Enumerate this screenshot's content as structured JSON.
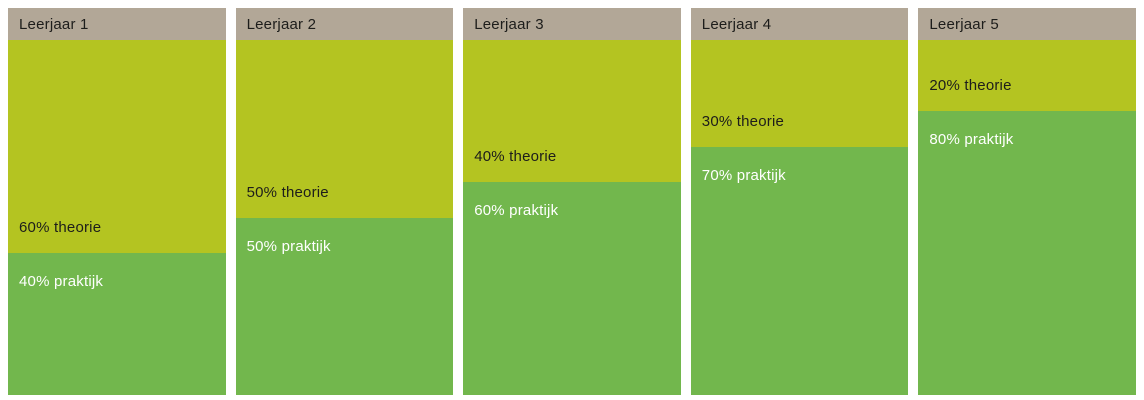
{
  "chart": {
    "colors": {
      "header": "#b2a797",
      "theorie": "#b4c421",
      "praktijk": "#72b74d",
      "theorie_text": "#1d1d1b",
      "praktijk_text": "#ffffff",
      "header_text": "#1d1d1b",
      "background": "#ffffff"
    }
  },
  "chart_data": {
    "type": "bar",
    "subtype": "100-percent-stacked-column",
    "title": "",
    "categories": [
      "Leerjaar 1",
      "Leerjaar 2",
      "Leerjaar 3",
      "Leerjaar 4",
      "Leerjaar 5"
    ],
    "series": [
      {
        "name": "theorie",
        "values": [
          60,
          50,
          40,
          30,
          20
        ],
        "color": "#b4c421"
      },
      {
        "name": "praktijk",
        "values": [
          40,
          50,
          60,
          70,
          80
        ],
        "color": "#72b74d"
      }
    ],
    "value_unit": "%",
    "ylim": [
      0,
      100
    ],
    "grid": false,
    "legend_position": "none",
    "data_labels": [
      [
        "60% theorie",
        "40% praktijk"
      ],
      [
        "50% theorie",
        "50% praktijk"
      ],
      [
        "40% theorie",
        "60% praktijk"
      ],
      [
        "30% theorie",
        "70% praktijk"
      ],
      [
        "20% theorie",
        "80% praktijk"
      ]
    ]
  },
  "columns": [
    {
      "title": "Leerjaar 1",
      "theorie_pct": 60,
      "praktijk_pct": 40,
      "theorie_label": "60% theorie",
      "praktijk_label": "40% praktijk"
    },
    {
      "title": "Leerjaar 2",
      "theorie_pct": 50,
      "praktijk_pct": 50,
      "theorie_label": "50% theorie",
      "praktijk_label": "50% praktijk"
    },
    {
      "title": "Leerjaar 3",
      "theorie_pct": 40,
      "praktijk_pct": 60,
      "theorie_label": "40% theorie",
      "praktijk_label": "60% praktijk"
    },
    {
      "title": "Leerjaar 4",
      "theorie_pct": 30,
      "praktijk_pct": 70,
      "theorie_label": "30% theorie",
      "praktijk_label": "70% praktijk"
    },
    {
      "title": "Leerjaar 5",
      "theorie_pct": 20,
      "praktijk_pct": 80,
      "theorie_label": "20% theorie",
      "praktijk_label": "80% praktijk"
    }
  ]
}
